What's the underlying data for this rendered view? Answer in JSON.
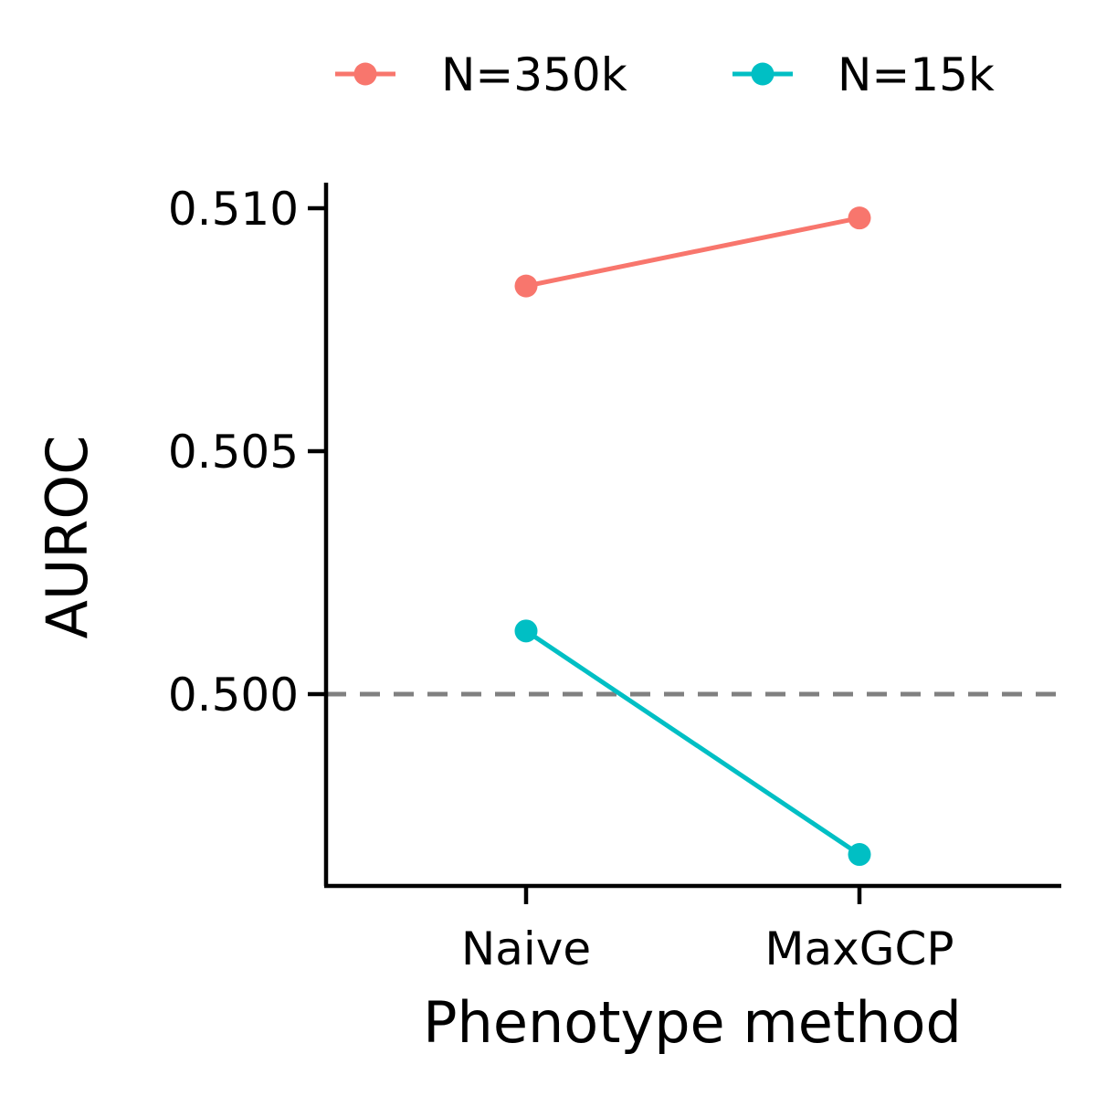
{
  "chart_data": {
    "type": "line",
    "xlabel": "Phenotype method",
    "ylabel": "AUROC",
    "categories": [
      "Naive",
      "MaxGCP"
    ],
    "ylim": [
      0.4968,
      0.5105
    ],
    "yticks": [
      "0.500",
      "0.505",
      "0.510"
    ],
    "reference_line": {
      "value": 0.5,
      "style": "dashed",
      "color": "#808080"
    },
    "legend_position": "top",
    "grid": false,
    "series": [
      {
        "name": "N=350k",
        "color": "#F8766D",
        "values": [
          0.5084,
          0.5098
        ]
      },
      {
        "name": "N=15k",
        "color": "#00BFC4",
        "values": [
          0.5013,
          0.4967
        ]
      }
    ]
  }
}
